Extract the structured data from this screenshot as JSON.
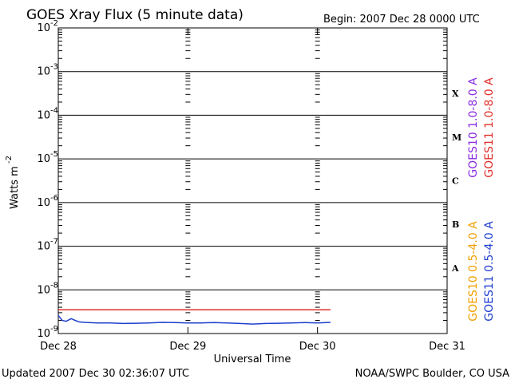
{
  "chart_data": {
    "type": "line",
    "title": "GOES Xray Flux (5 minute data)",
    "subtitle": "Begin:  2007 Dec 28 0000 UTC",
    "y_label": "Watts m",
    "y_label_exponent": "-2",
    "x_label": "Universal Time",
    "footer_left": "Updated 2007 Dec 30 02:36:07 UTC",
    "footer_right": "NOAA/SWPC Boulder, CO USA",
    "log_y": true,
    "grid": true,
    "xlim": [
      0,
      3
    ],
    "xticks": [
      {
        "value": 0,
        "label": "Dec 28"
      },
      {
        "value": 1,
        "label": "Dec 29"
      },
      {
        "value": 2,
        "label": "Dec 30"
      },
      {
        "value": 3,
        "label": "Dec 31"
      }
    ],
    "ylim": [
      1e-09,
      0.01
    ],
    "yticks": [
      {
        "value": 1e-09,
        "label": "10",
        "exponent": "-9"
      },
      {
        "value": 1e-08,
        "label": "10",
        "exponent": "-8"
      },
      {
        "value": 1e-07,
        "label": "10",
        "exponent": "-7"
      },
      {
        "value": 1e-06,
        "label": "10",
        "exponent": "-6"
      },
      {
        "value": 1e-05,
        "label": "10",
        "exponent": "-5"
      },
      {
        "value": 0.0001,
        "label": "10",
        "exponent": "-4"
      },
      {
        "value": 0.001,
        "label": "10",
        "exponent": "-3"
      },
      {
        "value": 0.01,
        "label": "10",
        "exponent": "-2"
      }
    ],
    "flare_classes": [
      {
        "label": "A",
        "value": 1e-08
      },
      {
        "label": "B",
        "value": 1e-07
      },
      {
        "label": "C",
        "value": 1e-06
      },
      {
        "label": "M",
        "value": 1e-05
      },
      {
        "label": "X",
        "value": 0.0001
      }
    ],
    "series": [
      {
        "name": "GOES10 1.0-8.0 A",
        "color": "#8a2be2",
        "x": [],
        "values": []
      },
      {
        "name": "GOES11 1.0-8.0 A",
        "color": "#e0302a",
        "x": [
          0,
          2.1
        ],
        "values": [
          3.5e-09,
          3.5e-09
        ]
      },
      {
        "name": "GOES10 0.5-4.0 A",
        "color": "#f0a000",
        "x": [],
        "values": []
      },
      {
        "name": "GOES11 0.5-4.0 A",
        "color": "#1f3fd0",
        "x": [
          0,
          0.03,
          0.06,
          0.1,
          0.13,
          0.16,
          0.2,
          0.3,
          0.4,
          0.5,
          0.6,
          0.7,
          0.8,
          0.9,
          1.0,
          1.1,
          1.2,
          1.3,
          1.4,
          1.5,
          1.6,
          1.7,
          1.8,
          1.9,
          2.0,
          2.1
        ],
        "values": [
          2.6e-09,
          2e-09,
          1.9e-09,
          2.2e-09,
          2e-09,
          1.85e-09,
          1.8e-09,
          1.75e-09,
          1.75e-09,
          1.7e-09,
          1.72e-09,
          1.75e-09,
          1.8e-09,
          1.78e-09,
          1.75e-09,
          1.75e-09,
          1.78e-09,
          1.75e-09,
          1.7e-09,
          1.65e-09,
          1.7e-09,
          1.72e-09,
          1.75e-09,
          1.78e-09,
          1.75e-09,
          1.8e-09
        ]
      }
    ]
  }
}
